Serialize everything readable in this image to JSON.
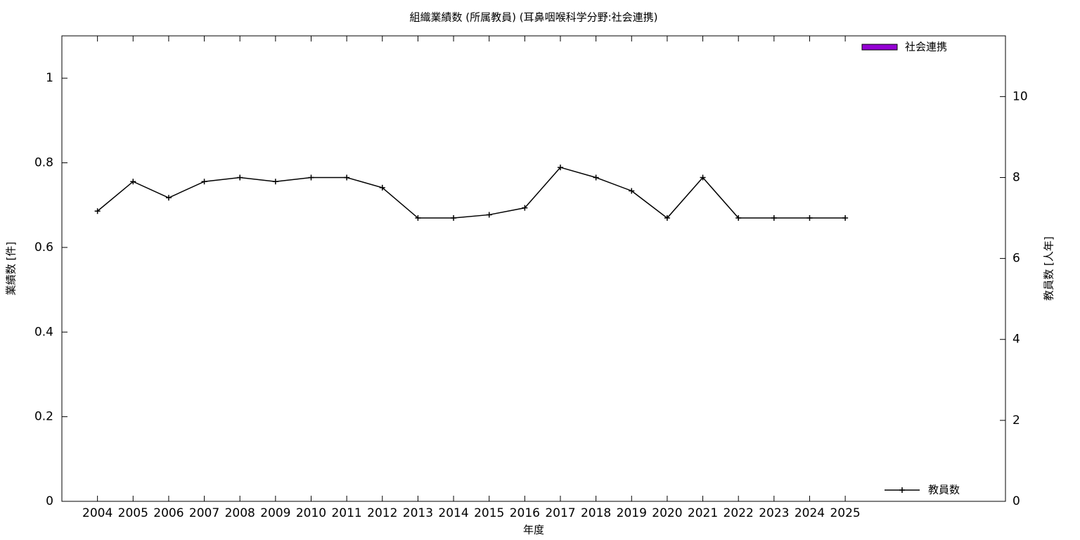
{
  "chart_data": {
    "type": "bar_line",
    "title": "組織業績数 (所属教員) (耳鼻咽喉科学分野:社会連携)",
    "x_label": "年度",
    "y_label": "業績数 [件]",
    "y2_label": "教員数 [人年]",
    "categories": [
      "2004",
      "2005",
      "2006",
      "2007",
      "2008",
      "2009",
      "2010",
      "2011",
      "2012",
      "2013",
      "2014",
      "2015",
      "2016",
      "2017",
      "2018",
      "2019",
      "2020",
      "2021",
      "2022",
      "2023",
      "2024",
      "2025"
    ],
    "series": [
      {
        "name": "社会連携",
        "type": "bar",
        "color": "#9400d3",
        "values": [
          0,
          0,
          0,
          0,
          0,
          0,
          0,
          0,
          0,
          0,
          0,
          0,
          0,
          0,
          0,
          0,
          0,
          0,
          0,
          0,
          0,
          0
        ]
      },
      {
        "name": "教員数",
        "type": "line",
        "axis": "y2",
        "color": "#000000",
        "values": [
          7.17,
          7.9,
          7.5,
          7.9,
          8,
          7.9,
          8,
          8,
          7.75,
          7,
          7,
          7.08,
          7.25,
          8.25,
          8,
          7.67,
          7,
          8,
          7,
          7,
          7,
          7
        ]
      }
    ],
    "ylim": [
      0,
      1.1
    ],
    "yticks": [
      0,
      0.2,
      0.4,
      0.6,
      0.8,
      1
    ],
    "y2lim": [
      0,
      11.5
    ],
    "y2ticks": [
      0,
      2,
      4,
      6,
      8,
      10
    ]
  }
}
